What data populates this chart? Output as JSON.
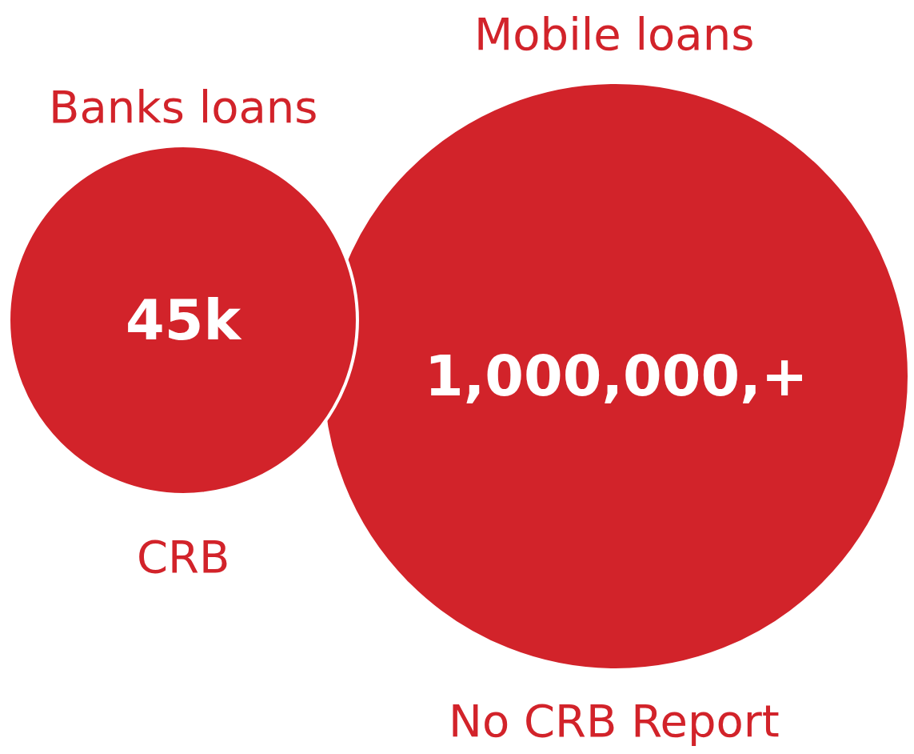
{
  "chart_data": {
    "type": "other",
    "categories": [
      "Banks loans",
      "Mobile loans"
    ],
    "values": [
      45000,
      1000000
    ],
    "value_labels": [
      "45k",
      "1,000,000,+"
    ],
    "colors": [
      "#d2232a",
      "#d2232a"
    ],
    "annotations": [
      "CRB",
      "No CRB Report"
    ]
  }
}
